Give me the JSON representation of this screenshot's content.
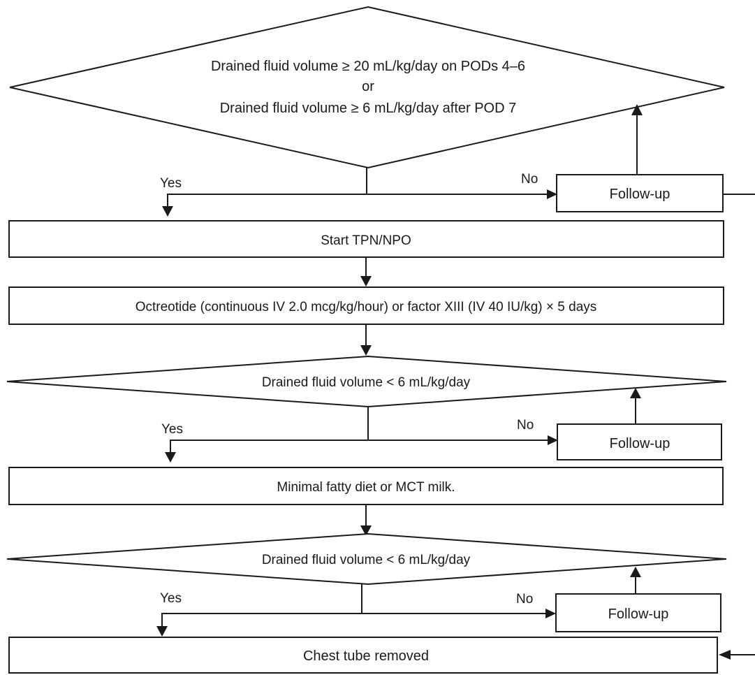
{
  "decision1": {
    "line1": "Drained fluid volume ≥ 20 mL/kg/day on PODs 4–6",
    "line2": "or",
    "line3": "Drained fluid volume ≥ 6 mL/kg/day after POD 7",
    "yes": "Yes",
    "no": "No",
    "followup": "Follow-up"
  },
  "step_tpn": "Start TPN/NPO",
  "step_octreotide": "Octreotide (continuous IV 2.0 mcg/kg/hour) or factor XIII (IV 40 IU/kg) × 5 days",
  "decision2": {
    "text": "Drained fluid volume < 6 mL/kg/day",
    "yes": "Yes",
    "no": "No",
    "followup": "Follow-up"
  },
  "step_diet": "Minimal fatty diet or MCT milk.",
  "decision3": {
    "text": "Drained fluid volume < 6 mL/kg/day",
    "yes": "Yes",
    "no": "No",
    "followup": "Follow-up"
  },
  "step_removed": "Chest tube removed"
}
